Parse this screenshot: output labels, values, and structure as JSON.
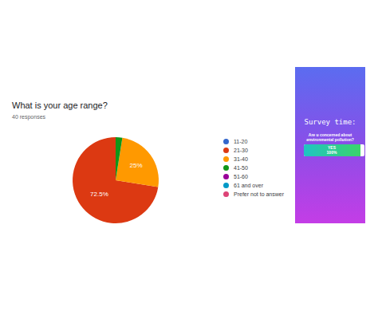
{
  "chart_data": {
    "type": "pie",
    "title": "What is your age range?",
    "subtitle": "40 responses",
    "categories": [
      "11-20",
      "21-30",
      "31-40",
      "41-50",
      "51-60",
      "61 and over",
      "Prefer not to answer"
    ],
    "values": [
      0,
      72.5,
      25,
      2.5,
      0,
      0,
      0
    ],
    "value_labels": [
      null,
      "72.5%",
      "25%",
      null,
      null,
      null,
      null
    ],
    "colors": [
      "#3366cc",
      "#dc3912",
      "#ff9900",
      "#109618",
      "#990099",
      "#0099c6",
      "#dd4477"
    ],
    "data_labels": true,
    "legend": "right"
  },
  "story_card": {
    "heading": "Survey time:",
    "question": "Are u concerned about environmental pollution?",
    "poll": {
      "option": "YES",
      "percent": "100%"
    }
  }
}
